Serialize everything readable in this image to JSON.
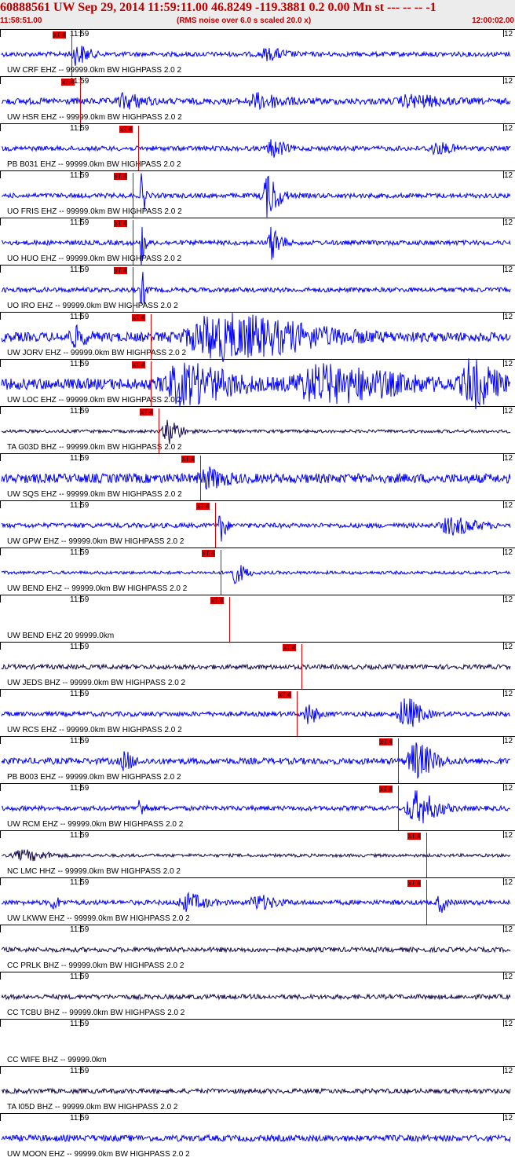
{
  "header": {
    "title": "60888561 UW Sep 29, 2014 11:59:11.00   46.8249 -119.3881  0.2 0.00 Mn st --- -- --  -1",
    "start_time": "11:58:51.00",
    "note": "(RMS noise over 6.0 s scaled 20.0 x)",
    "end_time": "12:00:02.00"
  },
  "colors": {
    "title": "#c00000",
    "trace_blue": "#0000ff",
    "trace_dark": "#1a0a50",
    "pick": "#e00000",
    "grid": "#000000"
  },
  "minute_label": "11:59",
  "end_tick_label": "12",
  "pick_label": "xT 4",
  "traces": [
    {
      "label": "UW CRF EHZ -- 99999.0km BW  HIGHPASS  2.0  2",
      "color": "blue",
      "amp": 3,
      "pick": 0.138,
      "events": [
        {
          "at": 0.145,
          "w": 0.02,
          "a": 12
        },
        {
          "at": 0.52,
          "w": 0.03,
          "a": 6
        }
      ]
    },
    {
      "label": "UW HSR EHZ -- 99999.0km BW  HIGHPASS  2.0  2",
      "color": "blue",
      "amp": 4,
      "pick": 0.154,
      "events": [
        {
          "at": 0.24,
          "w": 0.03,
          "a": 8
        },
        {
          "at": 0.5,
          "w": 0.04,
          "a": 8
        },
        {
          "at": 0.8,
          "w": 0.05,
          "a": 6
        }
      ]
    },
    {
      "label": "PB B031 EHZ -- 99999.0km BW  HIGHPASS  2.0  2",
      "color": "blue",
      "amp": 3,
      "pick": 0.268,
      "events": [
        {
          "at": 0.53,
          "w": 0.02,
          "a": 10
        },
        {
          "at": 0.85,
          "w": 0.03,
          "a": 6
        }
      ]
    },
    {
      "label": "UO FRIS EHZ -- 99999.0km BW  HIGHPASS  2.0  2",
      "color": "blue",
      "amp": 3,
      "pick": 0.258,
      "events": [
        {
          "at": 0.275,
          "w": 0.006,
          "a": 26
        },
        {
          "at": 0.52,
          "w": 0.02,
          "a": 26
        }
      ]
    },
    {
      "label": "UO HUO EHZ -- 99999.0km BW  HIGHPASS  2.0  2",
      "color": "blue",
      "amp": 3,
      "pick": 0.258,
      "events": [
        {
          "at": 0.275,
          "w": 0.006,
          "a": 26
        },
        {
          "at": 0.53,
          "w": 0.015,
          "a": 20
        }
      ]
    },
    {
      "label": "UO IRO EHZ -- 99999.0km BW  HIGHPASS  2.0  2",
      "color": "blue",
      "amp": 3,
      "pick": 0.258,
      "events": [
        {
          "at": 0.275,
          "w": 0.006,
          "a": 26
        }
      ]
    },
    {
      "label": "UW JORV EHZ -- 99999.0km BW  HIGHPASS  2.0  2",
      "color": "blue",
      "amp": 6,
      "pick": 0.293,
      "events": [
        {
          "at": 0.14,
          "w": 0.02,
          "a": 10
        },
        {
          "at": 0.42,
          "w": 0.14,
          "a": 26
        }
      ]
    },
    {
      "label": "UW LOC EHZ -- 99999.0km BW  HIGHPASS  2.0  2",
      "color": "blue",
      "amp": 7,
      "pick": 0.293,
      "events": [
        {
          "at": 0.35,
          "w": 0.08,
          "a": 22
        },
        {
          "at": 0.62,
          "w": 0.12,
          "a": 20
        },
        {
          "at": 0.92,
          "w": 0.04,
          "a": 26
        }
      ]
    },
    {
      "label": "TA G03D BHZ -- 99999.0km BW  HIGHPASS  2.0  2",
      "color": "dark",
      "amp": 2,
      "pick": 0.308,
      "events": [
        {
          "at": 0.325,
          "w": 0.02,
          "a": 16
        }
      ]
    },
    {
      "label": "UW SQS EHZ -- 99999.0km BW  HIGHPASS  2.0  2",
      "color": "blue",
      "amp": 6,
      "pick": 0.39,
      "events": [
        {
          "at": 0.4,
          "w": 0.03,
          "a": 10
        }
      ]
    },
    {
      "label": "UW GPW EHZ -- 99999.0km BW  HIGHPASS  2.0  2",
      "color": "blue",
      "amp": 3,
      "pick": 0.42,
      "events": [
        {
          "at": 0.43,
          "w": 0.008,
          "a": 22
        },
        {
          "at": 0.88,
          "w": 0.04,
          "a": 10
        }
      ]
    },
    {
      "label": "UW BEND EHZ -- 99999.0km BW  HIGHPASS  2.0  2",
      "color": "blue",
      "amp": 2,
      "pick": 0.43,
      "events": [
        {
          "at": 0.455,
          "w": 0.02,
          "a": 12
        }
      ]
    },
    {
      "label": "UW BEND EHZ 20 99999.0km",
      "color": "none",
      "amp": 0,
      "pick": 0.447,
      "events": []
    },
    {
      "label": "UW JEDS BHZ -- 99999.0km BW  HIGHPASS  2.0  2",
      "color": "dark",
      "amp": 3,
      "pick": 0.59,
      "events": []
    },
    {
      "label": "UW RCS EHZ -- 99999.0km BW  HIGHPASS  2.0  2",
      "color": "blue",
      "amp": 3,
      "pick": 0.58,
      "events": [
        {
          "at": 0.6,
          "w": 0.015,
          "a": 12
        },
        {
          "at": 0.79,
          "w": 0.025,
          "a": 20
        }
      ]
    },
    {
      "label": "PB B003 EHZ -- 99999.0km BW  HIGHPASS  2.0  2",
      "color": "blue",
      "amp": 4,
      "pick": 0.78,
      "events": [
        {
          "at": 0.24,
          "w": 0.015,
          "a": 10
        },
        {
          "at": 0.81,
          "w": 0.03,
          "a": 22
        }
      ]
    },
    {
      "label": "UW RCM EHZ -- 99999.0km BW  HIGHPASS  2.0  2",
      "color": "blue",
      "amp": 3,
      "pick": 0.78,
      "events": [
        {
          "at": 0.27,
          "w": 0.01,
          "a": 10
        },
        {
          "at": 0.81,
          "w": 0.035,
          "a": 20
        }
      ]
    },
    {
      "label": "NC LMC HHZ -- 99999.0km BW  HIGHPASS  2.0  2",
      "color": "dark",
      "amp": 2,
      "pick": 0.835,
      "events": [
        {
          "at": 0.04,
          "w": 0.04,
          "a": 6
        }
      ]
    },
    {
      "label": "UW LKWW EHZ -- 99999.0km BW  HIGHPASS  2.0  2",
      "color": "blue",
      "amp": 3,
      "pick": 0.835,
      "events": [
        {
          "at": 0.1,
          "w": 0.01,
          "a": 8
        },
        {
          "at": 0.36,
          "w": 0.03,
          "a": 10
        },
        {
          "at": 0.5,
          "w": 0.03,
          "a": 8
        },
        {
          "at": 0.86,
          "w": 0.01,
          "a": 12
        }
      ]
    },
    {
      "label": "CC PRLK BHZ -- 99999.0km BW  HIGHPASS  2.0  2",
      "color": "dark",
      "amp": 3,
      "pick": null,
      "events": []
    },
    {
      "label": "CC TCBU BHZ -- 99999.0km BW  HIGHPASS  2.0  2",
      "color": "dark",
      "amp": 3,
      "pick": null,
      "events": []
    },
    {
      "label": "CC WIFE BHZ -- 99999.0km",
      "color": "none",
      "amp": 0,
      "pick": null,
      "events": []
    },
    {
      "label": "TA I05D BHZ -- 99999.0km BW  HIGHPASS  2.0  2",
      "color": "dark",
      "amp": 3,
      "pick": null,
      "events": []
    },
    {
      "label": "UW MOON EHZ -- 99999.0km BW  HIGHPASS  2.0  2",
      "color": "blue",
      "amp": 4,
      "pick": null,
      "events": []
    }
  ]
}
